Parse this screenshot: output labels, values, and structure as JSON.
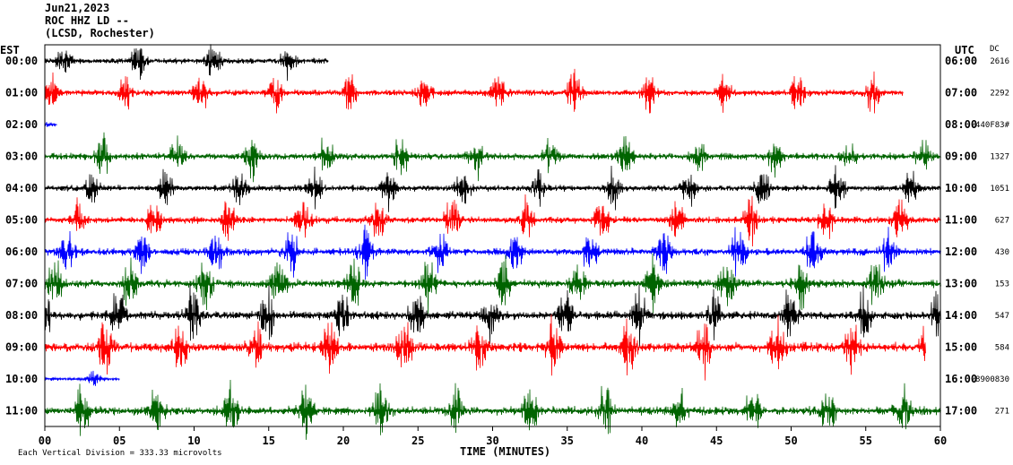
{
  "header": {
    "date": "Jun21,2023",
    "station": "ROC HHZ LD --",
    "location": "(LCSD, Rochester)"
  },
  "left_axis_title": "EST",
  "right_axis_title": "UTC",
  "dc_title": "DC",
  "footer": "Each Vertical Division = 333.33 microvolts",
  "colors": {
    "black": "#000000",
    "red": "#ff0000",
    "blue": "#0000ff",
    "green": "#006400"
  },
  "chart_data": {
    "type": "line",
    "xlabel": "TIME (MINUTES)",
    "x_ticks": [
      "00",
      "05",
      "10",
      "15",
      "20",
      "25",
      "30",
      "35",
      "40",
      "45",
      "50",
      "55",
      "60"
    ],
    "xlim": [
      0,
      60
    ],
    "rows": [
      {
        "est": "00:00",
        "utc": "06:00",
        "dc": "2616",
        "color": "black",
        "end_minute": 19,
        "activity": 0.9
      },
      {
        "est": "01:00",
        "utc": "07:00",
        "dc": "2292",
        "color": "red",
        "end_minute": 57.5,
        "activity": 1.0
      },
      {
        "est": "02:00",
        "utc": "08:00",
        "dc": "-440F83#",
        "color": "blue",
        "end_minute": 0.8,
        "activity": 0.6
      },
      {
        "est": "03:00",
        "utc": "09:00",
        "dc": "1327",
        "color": "green",
        "end_minute": 60,
        "activity": 1.1
      },
      {
        "est": "04:00",
        "utc": "10:00",
        "dc": "1051",
        "color": "black",
        "end_minute": 60,
        "activity": 1.0
      },
      {
        "est": "05:00",
        "utc": "11:00",
        "dc": "627",
        "color": "red",
        "end_minute": 60,
        "activity": 1.1
      },
      {
        "est": "06:00",
        "utc": "12:00",
        "dc": "430",
        "color": "blue",
        "end_minute": 60,
        "activity": 1.2
      },
      {
        "est": "07:00",
        "utc": "13:00",
        "dc": "153",
        "color": "green",
        "end_minute": 60,
        "activity": 1.3
      },
      {
        "est": "08:00",
        "utc": "14:00",
        "dc": "547",
        "color": "black",
        "end_minute": 60,
        "activity": 1.4
      },
      {
        "est": "09:00",
        "utc": "15:00",
        "dc": "584",
        "color": "red",
        "end_minute": 59,
        "activity": 1.5
      },
      {
        "est": "10:00",
        "utc": "16:00",
        "dc": "-8900830",
        "color": "blue",
        "end_minute": 5,
        "activity": 0.5
      },
      {
        "est": "11:00",
        "utc": "17:00",
        "dc": "271",
        "color": "green",
        "end_minute": 60,
        "activity": 1.4
      }
    ]
  }
}
